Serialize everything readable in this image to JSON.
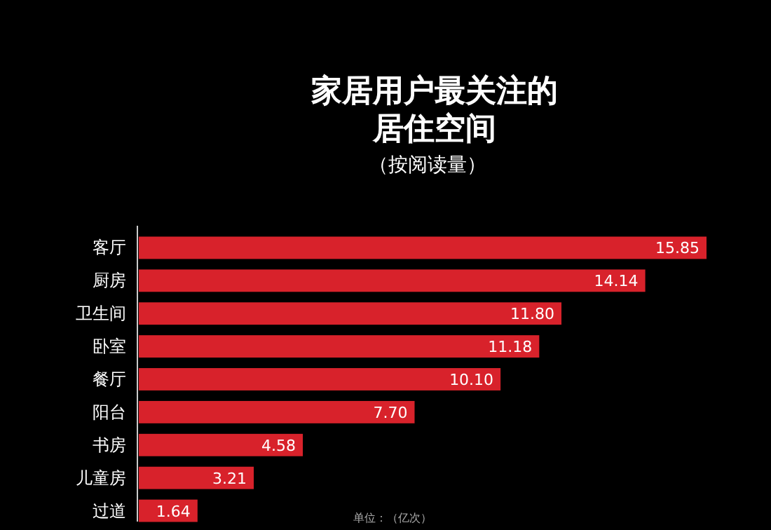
{
  "chart_data": {
    "type": "bar",
    "orientation": "horizontal",
    "title": "家居用户最关注的居住空间",
    "subtitle": "（按阅读量）",
    "categories": [
      "客厅",
      "厨房",
      "卫生间",
      "卧室",
      "餐厅",
      "阳台",
      "书房",
      "儿童房",
      "过道"
    ],
    "values": [
      15.85,
      14.14,
      11.8,
      11.18,
      10.1,
      7.7,
      4.58,
      3.21,
      1.64
    ],
    "value_labels": [
      "15.85",
      "14.14",
      "11.80",
      "11.18",
      "10.10",
      "7.70",
      "4.58",
      "3.21",
      "1.64"
    ],
    "color": "#d8222b",
    "annotations": [
      "单位：（亿次）"
    ]
  }
}
